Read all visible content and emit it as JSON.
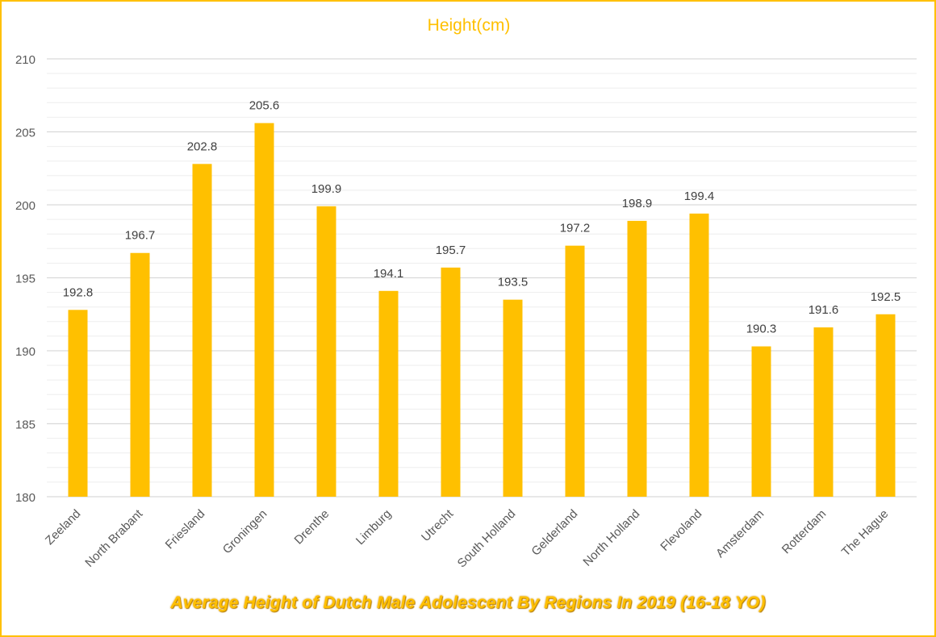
{
  "chart_data": {
    "type": "bar",
    "title": "Height(cm)",
    "footer_title": "Average Height of Dutch Male Adolescent By Regions In 2019 (16-18 YO)",
    "categories": [
      "Zeeland",
      "North Brabant",
      "Friesland",
      "Groningen",
      "Drenthe",
      "Limburg",
      "Utrecht",
      "South Holland",
      "Gelderland",
      "North Holland",
      "Flevoland",
      "Amsterdam",
      "Rotterdam",
      "The Hague"
    ],
    "values": [
      192.8,
      196.7,
      202.8,
      205.6,
      199.9,
      194.1,
      195.7,
      193.5,
      197.2,
      198.9,
      199.4,
      190.3,
      191.6,
      192.5
    ],
    "ylim": [
      180,
      210
    ],
    "yticks": [
      180,
      185,
      190,
      195,
      200,
      205,
      210
    ],
    "grid": true,
    "legend": "none",
    "colors": {
      "bar": "#ffc000",
      "title": "#ffc000",
      "border": "#ffc000",
      "major_grid": "#d9d9d9",
      "minor_grid": "#eeeeee",
      "label": "#404040",
      "axis_text": "#595959"
    }
  }
}
